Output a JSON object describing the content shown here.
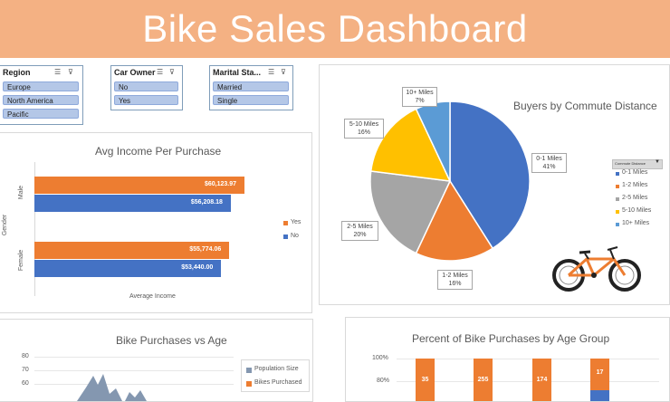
{
  "header": {
    "title": "Bike Sales Dashboard"
  },
  "slicers": [
    {
      "title": "Region",
      "items": [
        "Europe",
        "North America",
        "Pacific"
      ]
    },
    {
      "title": "Car Owner",
      "items": [
        "No",
        "Yes"
      ]
    },
    {
      "title": "Marital Sta...",
      "items": [
        "Married",
        "Single"
      ]
    }
  ],
  "income_chart": {
    "chart_data": {
      "type": "bar",
      "title": "Avg Income Per Purchase",
      "xlabel": "Average Income",
      "ylabel": "Gender",
      "categories": [
        "Male",
        "Female"
      ],
      "series": [
        {
          "name": "Yes",
          "values": [
            60123.97,
            55774.06
          ],
          "labels": [
            "$60,123.97",
            "$55,774.06"
          ],
          "color": "#ed7d31"
        },
        {
          "name": "No",
          "values": [
            56208.18,
            53440.0
          ],
          "labels": [
            "$56,208.18",
            "$53,440.00"
          ],
          "color": "#4472c4"
        }
      ],
      "legend": "right"
    }
  },
  "commute_chart": {
    "chart_data": {
      "type": "pie",
      "title": "Buyers by Commute Distance",
      "legend_title": "Commute Distance",
      "slices": [
        {
          "label": "0-1 Miles",
          "value": 41,
          "pct": "41%",
          "color": "#4472c4"
        },
        {
          "label": "1-2 Miles",
          "value": 16,
          "pct": "16%",
          "color": "#ed7d31"
        },
        {
          "label": "2-5 Miles",
          "value": 20,
          "pct": "20%",
          "color": "#a5a5a5"
        },
        {
          "label": "5-10 Miles",
          "value": 16,
          "pct": "16%",
          "color": "#ffc000"
        },
        {
          "label": "10+ Miles",
          "value": 7,
          "pct": "7%",
          "color": "#5b9bd5"
        }
      ],
      "legend": "right"
    }
  },
  "age_chart": {
    "chart_data": {
      "type": "area",
      "title": "Bike Purchases vs Age",
      "yticks": [
        "80",
        "70",
        "60"
      ],
      "series": [
        {
          "name": "Population Size",
          "color": "#8497b0"
        },
        {
          "name": "Bikes Purchased",
          "color": "#ed7d31"
        }
      ]
    }
  },
  "age_group_chart": {
    "chart_data": {
      "type": "bar",
      "title": "Percent of Bike Purchases by Age Group",
      "yticks": [
        "100%",
        "80%"
      ],
      "values": [
        35,
        255,
        174,
        17
      ],
      "labels": [
        "35",
        "255",
        "174",
        "17"
      ]
    }
  }
}
